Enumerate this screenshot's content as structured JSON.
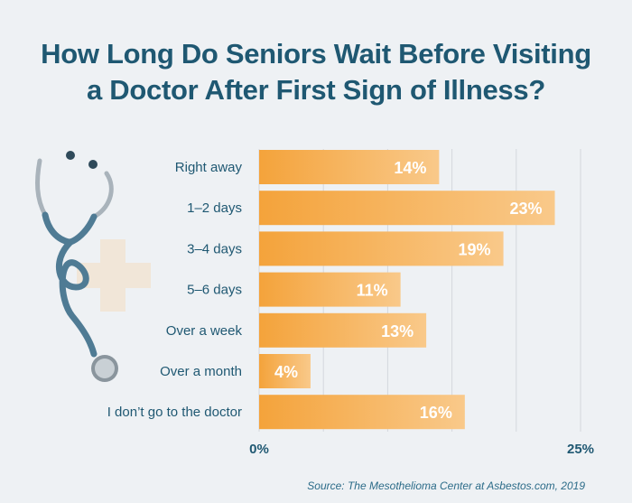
{
  "title_lines": [
    "How Long Do Seniors Wait Before Visiting",
    "a Doctor After First Sign of Illness?"
  ],
  "source": "Source: The Mesothelioma Center at Asbestos.com, 2019",
  "colors": {
    "title": "#1f5872",
    "bar_start": "#f4a33b",
    "bar_end": "#f9c98a",
    "background": "#eef1f4",
    "grid": "#d4d8dd"
  },
  "decoration": [
    "stethoscope-icon",
    "medical-cross-icon"
  ],
  "chart_data": {
    "type": "bar",
    "orientation": "horizontal",
    "categories": [
      "Right away",
      "1–2 days",
      "3–4 days",
      "5–6 days",
      "Over a week",
      "Over a month",
      "I don’t go to the doctor"
    ],
    "values": [
      14,
      23,
      19,
      11,
      13,
      4,
      16
    ],
    "value_labels": [
      "14%",
      "23%",
      "19%",
      "11%",
      "13%",
      "4%",
      "16%"
    ],
    "xlim": [
      0,
      25
    ],
    "tick_labels": [
      "0%",
      "25%"
    ],
    "grid": true,
    "title": "How Long Do Seniors Wait Before Visiting a Doctor After First Sign of Illness?"
  }
}
